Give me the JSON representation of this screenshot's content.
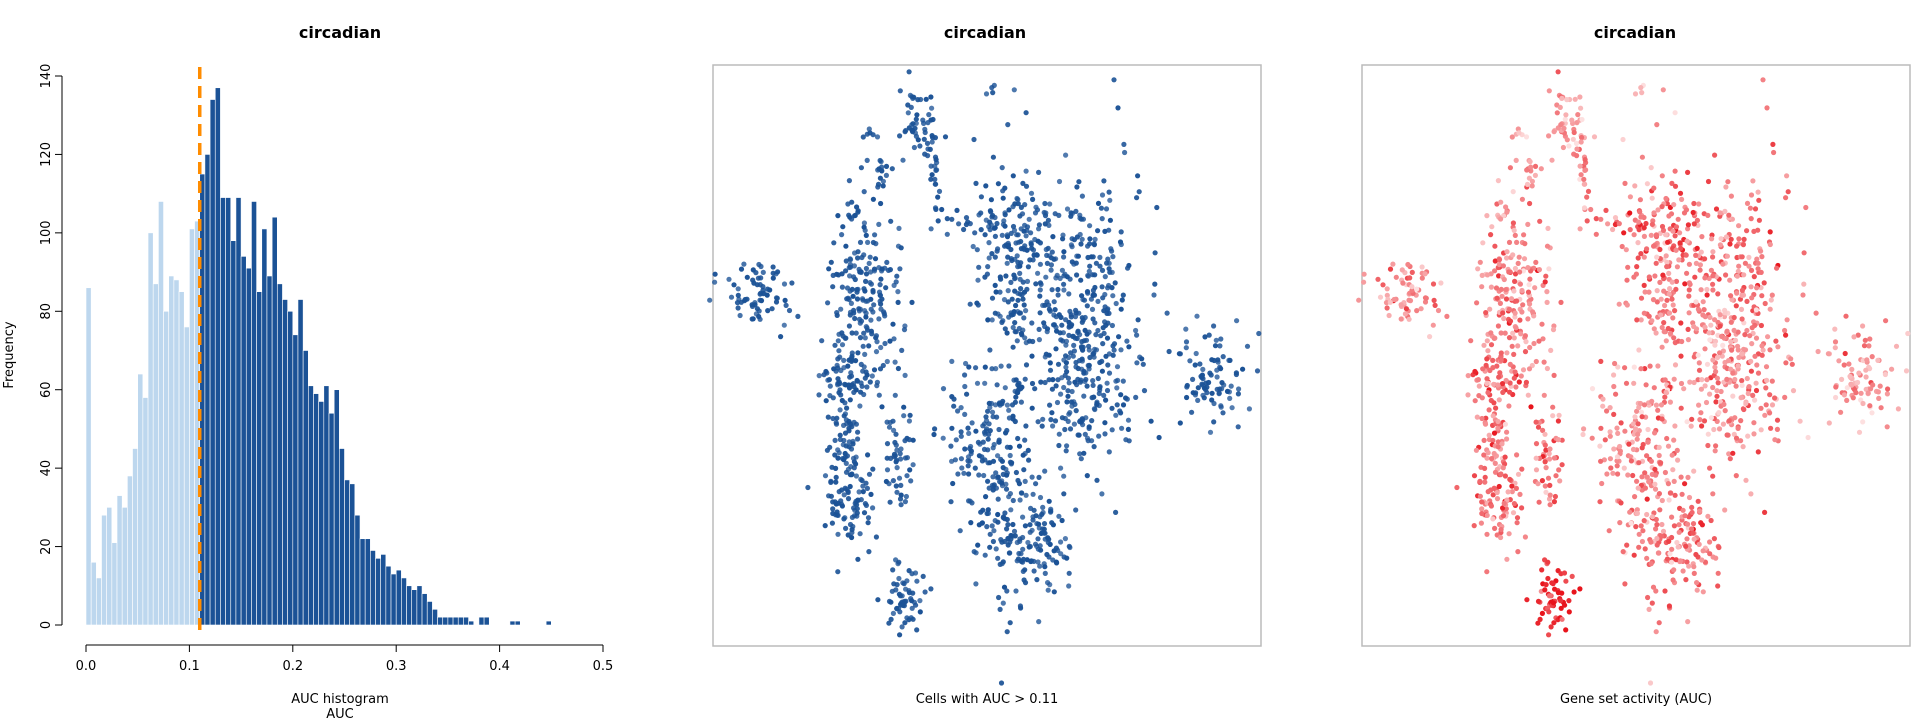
{
  "panels": {
    "histogram": {
      "title": "circadian",
      "xlabel_line1": "AUC histogram",
      "xlabel_line2": "AUC",
      "ylabel": "Frequency"
    },
    "binary_map": {
      "title": "circadian",
      "caption": "Cells with AUC > 0.11"
    },
    "activity_map": {
      "title": "circadian",
      "caption": "Gene set activity (AUC)"
    }
  },
  "colors": {
    "below_threshold": "#bdd7ee",
    "above_threshold": "#1b5296",
    "threshold_line": "#ff8c00",
    "binary_on": "#1b5296",
    "activity_high": "#e8141c",
    "activity_low": "#fde0e0",
    "frame": "#bbbbbb"
  },
  "chart_data": [
    {
      "type": "bar",
      "title": "circadian",
      "xlabel": "AUC histogram\nAUC",
      "ylabel": "Frequency",
      "xlim": [
        0,
        0.5
      ],
      "ylim": [
        0,
        140
      ],
      "xticks": [
        "0.0",
        "0.1",
        "0.2",
        "0.3",
        "0.4",
        "0.5"
      ],
      "yticks": [
        "0",
        "20",
        "40",
        "60",
        "80",
        "100",
        "120",
        "140"
      ],
      "threshold": 0.11,
      "bin_width": 0.005,
      "bin_start": 0.0,
      "values": [
        86,
        16,
        12,
        28,
        30,
        21,
        33,
        30,
        38,
        45,
        64,
        58,
        100,
        87,
        108,
        80,
        89,
        88,
        85,
        76,
        101,
        103,
        115,
        120,
        134,
        137,
        109,
        109,
        98,
        109,
        94,
        91,
        108,
        85,
        101,
        89,
        104,
        87,
        83,
        80,
        74,
        83,
        70,
        61,
        59,
        57,
        61,
        54,
        60,
        45,
        37,
        36,
        28,
        22,
        22,
        19,
        17,
        18,
        15,
        13,
        14,
        12,
        10,
        9,
        10,
        8,
        6,
        4,
        2,
        2,
        2,
        2,
        2,
        2,
        1,
        0,
        2,
        2,
        0,
        0,
        0,
        0,
        1,
        1,
        0,
        0,
        0,
        0,
        0,
        1
      ]
    },
    {
      "type": "scatter",
      "title": "circadian",
      "xlabel": "Cells with AUC > 0.11"
    },
    {
      "type": "scatter",
      "title": "circadian",
      "xlabel": "Gene set activity (AUC)"
    }
  ]
}
